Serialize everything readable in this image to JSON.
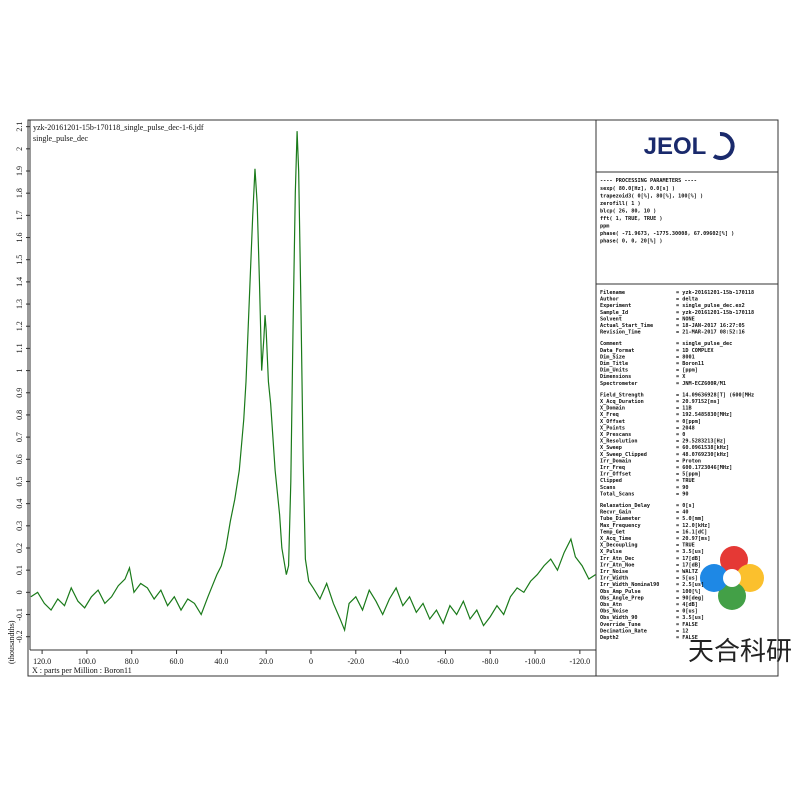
{
  "chart_data": {
    "type": "line",
    "title": "yzk-20161201-15b-170118_single_pulse_dec-1-6.jdf",
    "subtitle": "single_pulse_dec",
    "x_label": "X : parts per Million : Boron11",
    "y_label": "(thousandths)",
    "x": [
      125,
      122,
      119,
      116,
      113,
      110,
      107,
      104,
      101,
      98,
      95,
      92,
      89,
      86,
      83,
      81,
      79,
      76,
      73,
      70,
      67,
      64,
      61,
      58,
      55,
      52,
      49,
      46,
      44,
      42,
      40,
      38,
      36,
      34,
      32,
      30,
      29,
      28,
      27,
      26,
      25,
      24,
      23,
      22,
      21,
      20.5,
      20,
      19,
      18,
      17,
      16,
      15,
      14,
      13,
      12,
      11,
      10,
      9,
      8,
      7,
      6.2,
      5.5,
      4.5,
      3.5,
      2.5,
      1,
      -1,
      -4,
      -7,
      -10,
      -13,
      -15,
      -17,
      -20,
      -23,
      -26,
      -29,
      -32,
      -35,
      -38,
      -41,
      -44,
      -47,
      -50,
      -53,
      -56,
      -59,
      -62,
      -65,
      -68,
      -71,
      -74,
      -77,
      -80,
      -83,
      -86,
      -89,
      -92,
      -95,
      -98,
      -101,
      -104,
      -107,
      -110,
      -113,
      -116,
      -118,
      -121,
      -124,
      -127
    ],
    "series": [
      {
        "color": "#1a7a1a",
        "values": [
          -0.02,
          0.0,
          -0.05,
          -0.08,
          -0.03,
          -0.06,
          0.02,
          -0.04,
          -0.07,
          -0.02,
          0.01,
          -0.05,
          -0.02,
          0.03,
          0.06,
          0.11,
          0.0,
          0.04,
          0.02,
          -0.03,
          0.01,
          -0.06,
          -0.02,
          -0.08,
          -0.03,
          -0.05,
          -0.1,
          -0.02,
          0.03,
          0.08,
          0.12,
          0.2,
          0.32,
          0.42,
          0.55,
          0.78,
          0.95,
          1.2,
          1.45,
          1.7,
          1.91,
          1.75,
          1.4,
          1.0,
          1.15,
          1.25,
          1.18,
          0.95,
          0.85,
          0.7,
          0.55,
          0.45,
          0.35,
          0.2,
          0.14,
          0.08,
          0.12,
          0.5,
          1.2,
          1.8,
          2.08,
          1.9,
          1.3,
          0.6,
          0.15,
          0.05,
          0.02,
          -0.03,
          0.04,
          -0.05,
          -0.12,
          -0.17,
          -0.05,
          -0.02,
          -0.08,
          0.01,
          -0.04,
          -0.1,
          -0.03,
          0.02,
          -0.06,
          -0.02,
          -0.09,
          -0.05,
          -0.12,
          -0.08,
          -0.14,
          -0.06,
          -0.1,
          -0.04,
          -0.12,
          -0.08,
          -0.15,
          -0.11,
          -0.06,
          -0.1,
          -0.02,
          0.02,
          0.0,
          0.05,
          0.08,
          0.12,
          0.15,
          0.1,
          0.18,
          0.24,
          0.16,
          0.12,
          0.06,
          0.08
        ]
      }
    ],
    "xlim": [
      125.4,
      -127.2
    ],
    "xticks": [
      {
        "value": 120,
        "label": "120.0"
      },
      {
        "value": 100,
        "label": "100.0"
      },
      {
        "value": 80,
        "label": "80.0"
      },
      {
        "value": 60,
        "label": "60.0"
      },
      {
        "value": 40,
        "label": "40.0"
      },
      {
        "value": 20,
        "label": "20.0"
      },
      0,
      {
        "value": -20,
        "label": "-20.0"
      },
      {
        "value": -40,
        "label": "-40.0"
      },
      {
        "value": -60,
        "label": "-60.0"
      },
      {
        "value": -80,
        "label": "-80.0"
      },
      {
        "value": -100,
        "label": "-100.0"
      },
      {
        "value": -120,
        "label": "-120.0"
      }
    ],
    "ylim": [
      -0.26,
      2.13
    ],
    "yticks": [
      -0.2,
      -0.1,
      0,
      0.1,
      0.2,
      0.3,
      0.4,
      0.5,
      0.6,
      0.7,
      0.8,
      0.9,
      1,
      1.1,
      1.2,
      1.3,
      1.4,
      1.5,
      1.6,
      1.7,
      1.8,
      1.9,
      2,
      2.1
    ]
  },
  "panel": {
    "logo": "JEOL",
    "processing_header": "---- PROCESSING PARAMETERS ----",
    "processing": [
      "sexp( 80.0[Hz], 0.0[s] )",
      "trapezoid3( 0[%], 80[%], 100[%] )",
      "zerofill( 1 )",
      "blcp( 26, 80, 10 )",
      "fft( 1, TRUE, TRUE )",
      "ppm",
      "phase( -71.9673, -1775.30008, 67.09602[%] )",
      "phase( 0, 0, 20[%] )"
    ],
    "parameters": [
      [
        [
          "Filename",
          "= yzk-20161201-15b-170118"
        ],
        [
          "Author",
          "= delta"
        ],
        [
          "Experiment",
          "= single_pulse_dec.ex2"
        ],
        [
          "Sample_Id",
          "= yzk-20161201-15b-170118"
        ],
        [
          "Solvent",
          "= NONE"
        ],
        [
          "Actual_Start_Time",
          "= 18-JAN-2017 16:27:05"
        ],
        [
          "Revision_Time",
          "= 21-MAR-2017 08:52:16"
        ]
      ],
      [
        [
          "Comment",
          "= single_pulse_dec"
        ],
        [
          "Data_Format",
          "= 1D COMPLEX"
        ],
        [
          "Dim_Size",
          "= 8001"
        ],
        [
          "Dim_Title",
          "= Boron11"
        ],
        [
          "Dim_Units",
          "= [ppm]"
        ],
        [
          "Dimensions",
          "= X"
        ],
        [
          "Spectrometer",
          "= JNM-ECZ600R/M1"
        ]
      ],
      [
        [
          "Field_Strength",
          "= 14.09636928[T] (600[MHz"
        ],
        [
          "X_Acq_Duration",
          "= 20.97152[ms]"
        ],
        [
          "X_Domain",
          "= 11B"
        ],
        [
          "X_Freq",
          "= 192.5485830[MHz]"
        ],
        [
          "X_Offset",
          "= 0[ppm]"
        ],
        [
          "X_Points",
          "= 2048"
        ],
        [
          "X_Prescans",
          "= 0"
        ],
        [
          "X_Resolution",
          "= 29.5283213[Hz]"
        ],
        [
          "X_Sweep",
          "= 60.0961538[kHz]"
        ],
        [
          "X_Sweep_Clipped",
          "= 48.0769230[kHz]"
        ],
        [
          "Irr_Domain",
          "= Proton"
        ],
        [
          "Irr_Freq",
          "= 600.1723046[MHz]"
        ],
        [
          "Irr_Offset",
          "= 5[ppm]"
        ],
        [
          "Clipped",
          "= TRUE"
        ],
        [
          "Scans",
          "= 90"
        ],
        [
          "Total_Scans",
          "= 90"
        ]
      ],
      [
        [
          "Relaxation_Delay",
          "= 0[s]"
        ],
        [
          "Recvr_Gain",
          "= 40"
        ],
        [
          "Tube_Diameter",
          "= 5.0[mm]"
        ],
        [
          "Max_Frequency",
          "= 12.0[kHz]"
        ],
        [
          "Temp_Get",
          "= 16.1[dC]"
        ],
        [
          "X_Acq_Time",
          "= 20.97[ms]"
        ],
        [
          "X_Decoupling",
          "= TRUE"
        ],
        [
          "X_Pulse",
          "= 3.5[us]"
        ],
        [
          "Irr_Atn_Dec",
          "= 17[dB]"
        ],
        [
          "Irr_Atn_Noe",
          "= 17[dB]"
        ],
        [
          "Irr_Noise",
          "= WALTZ"
        ],
        [
          "Irr_Width",
          "= 5[us]"
        ],
        [
          "Irr_Width_Nominal90",
          "= 2.5[us]"
        ],
        [
          "Obs_Amp_Pulse",
          "= 100[%]"
        ],
        [
          "Obs_Angle_Prep",
          "= 90[deg]"
        ],
        [
          "Obs_Atn",
          "= 4[dB]"
        ],
        [
          "Obs_Noise",
          "= 0[us]"
        ],
        [
          "Obs_Width_90",
          "= 3.5[us]"
        ],
        [
          "Override_Tune",
          "= FALSE"
        ],
        [
          "Decimation_Rate",
          "= 12"
        ],
        [
          "Depth2",
          "= FALSE"
        ]
      ]
    ]
  },
  "watermark": "天合科研"
}
